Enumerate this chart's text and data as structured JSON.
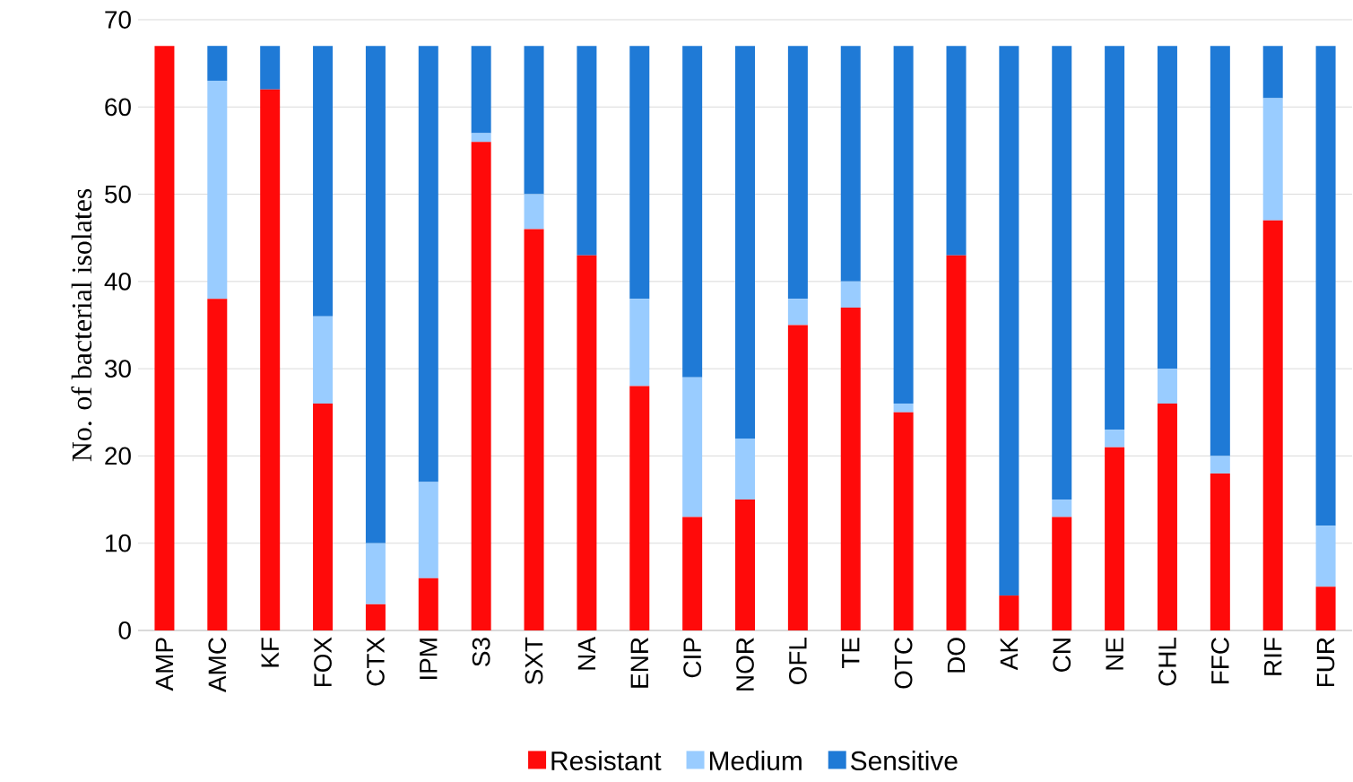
{
  "chart_data": {
    "type": "bar",
    "stacked": true,
    "ylabel": "No. of  bacterial isolates",
    "categories": [
      "AMP",
      "AMC",
      "KF",
      "FOX",
      "CTX",
      "IPM",
      "S3",
      "SXT",
      "NA",
      "ENR",
      "CIP",
      "NOR",
      "OFL",
      "TE",
      "OTC",
      "DO",
      "AK",
      "CN",
      "NE",
      "CHL",
      "FFC",
      "RIF",
      "FUR"
    ],
    "series": [
      {
        "name": "Resistant",
        "color": "#ff0a0a",
        "values": [
          67,
          38,
          62,
          26,
          3,
          6,
          56,
          46,
          43,
          28,
          13,
          15,
          35,
          37,
          25,
          43,
          4,
          13,
          21,
          26,
          18,
          47,
          5
        ]
      },
      {
        "name": "Medium",
        "color": "#99ccff",
        "values": [
          0,
          25,
          0,
          10,
          7,
          11,
          1,
          4,
          0,
          10,
          16,
          7,
          3,
          3,
          1,
          0,
          0,
          2,
          2,
          4,
          2,
          14,
          7
        ]
      },
      {
        "name": "Sensitive",
        "color": "#1f7ad6",
        "values": [
          0,
          4,
          5,
          31,
          57,
          50,
          10,
          17,
          24,
          29,
          38,
          45,
          29,
          27,
          41,
          24,
          63,
          52,
          44,
          37,
          47,
          6,
          55
        ]
      }
    ],
    "ylim": [
      0,
      70
    ],
    "yticks": [
      0,
      10,
      20,
      30,
      40,
      50,
      60,
      70
    ],
    "grid": "y",
    "legend": "bottom"
  }
}
